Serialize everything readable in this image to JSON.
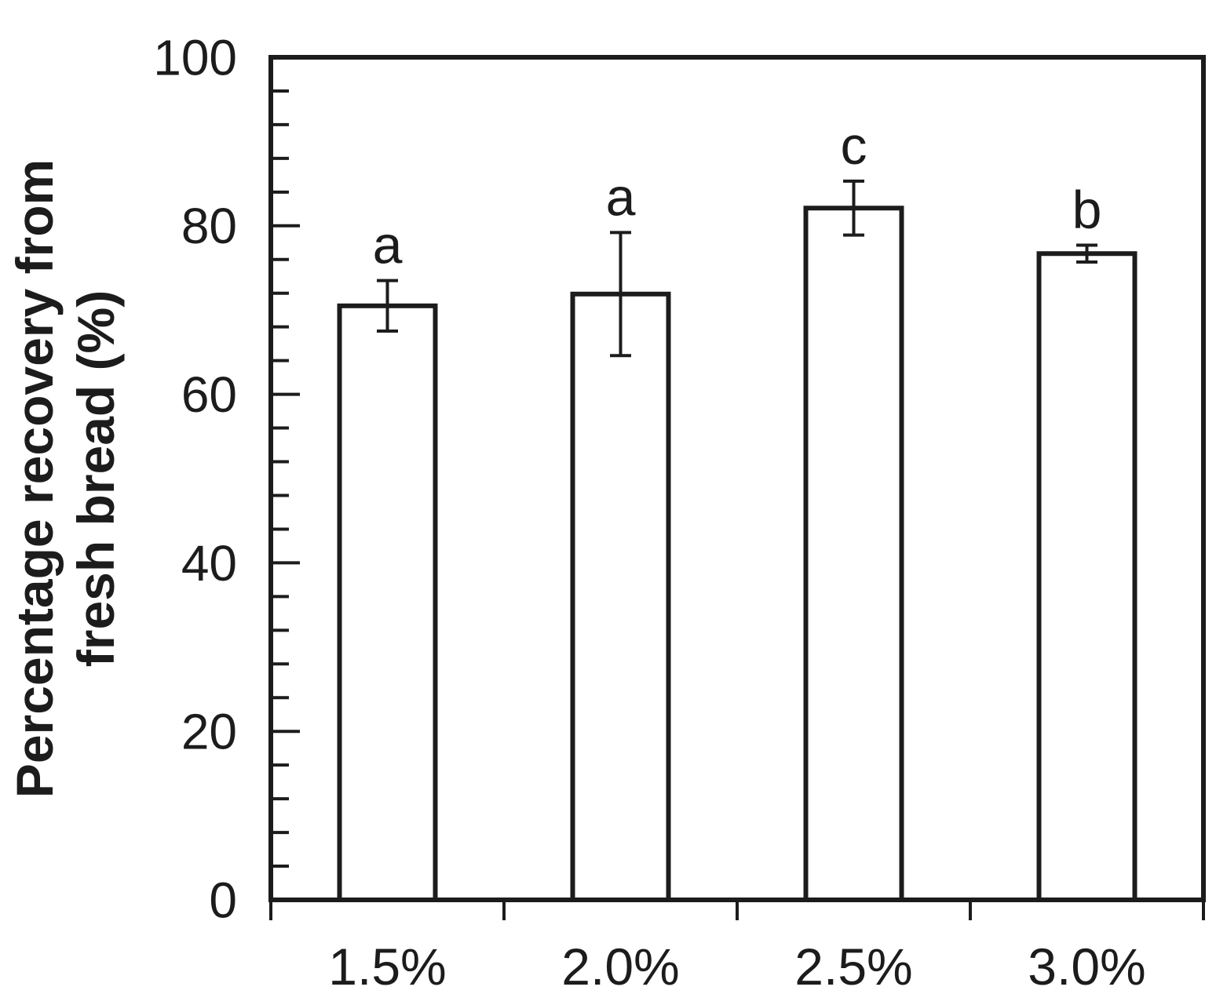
{
  "figure": {
    "background": "#ffffff",
    "line_color": "#1c1c1c",
    "bar_fill": "#ffffff"
  },
  "chart_data": {
    "type": "bar",
    "title": "",
    "xlabel": "",
    "ylabel": "Percentage recovery from fresh bread (%)",
    "ylabel_lines": [
      "Percentage recovery from",
      "fresh bread (%)"
    ],
    "categories": [
      "1.5%",
      "2.0%",
      "2.5%",
      "3.0%"
    ],
    "values": [
      70.5,
      71.9,
      82.1,
      76.7
    ],
    "errors": [
      3.0,
      7.3,
      3.2,
      1.0
    ],
    "significance_letters": [
      "a",
      "a",
      "c",
      "b"
    ],
    "ylim": [
      0,
      100
    ],
    "yticks": [
      0,
      20,
      40,
      60,
      80,
      100
    ],
    "minor_tick_step": 4,
    "grid": "off",
    "legend": "none",
    "frame": "full-box"
  }
}
